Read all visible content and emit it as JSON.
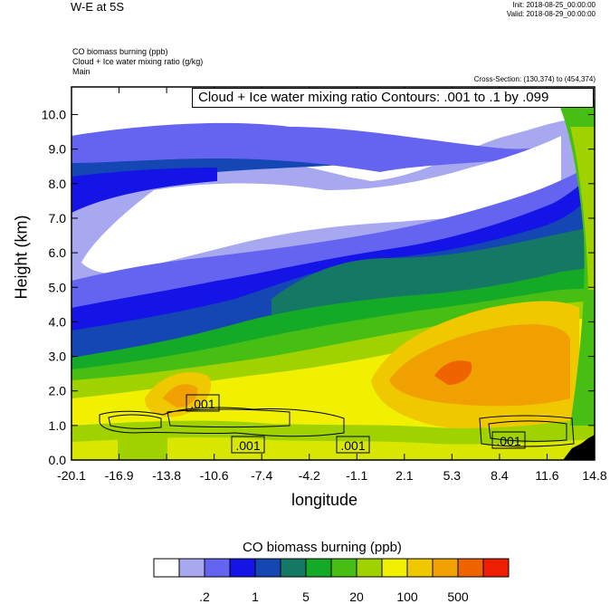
{
  "header": {
    "title": "W-E at 5S",
    "init": "Init: 2018-08-25_00:00:00",
    "valid": "Valid: 2018-08-29_00:00:00",
    "field1": "CO biomass burning   (ppb)",
    "field2": "Cloud + Ice water mixing ratio   (g/kg)",
    "field3": "Main",
    "cross_section": "Cross-Section: (130,374) to (454,374)"
  },
  "chart_data": {
    "type": "heatmap",
    "contour_legend": "Cloud + Ice water mixing ratio Contours: .001 to .1 by .099",
    "contour_labels": [
      ".001",
      ".001",
      ".001",
      ".001"
    ],
    "xlabel": "longitude",
    "ylabel": "Height (km)",
    "x_ticks": [
      "-20.1",
      "-16.9",
      "-13.8",
      "-10.6",
      "-7.4",
      "-4.2",
      "-1.1",
      "2.1",
      "5.3",
      "8.4",
      "11.6",
      "14.8"
    ],
    "y_ticks": [
      "0.0",
      "1.0",
      "2.0",
      "3.0",
      "4.0",
      "5.0",
      "6.0",
      "7.0",
      "8.0",
      "9.0",
      "10.0"
    ],
    "xlim": [
      -20.1,
      14.8
    ],
    "ylim": [
      0,
      10.8
    ],
    "colorbar": {
      "title": "CO biomass burning  (ppb)",
      "colors": [
        "#ffffff",
        "#a8a8f0",
        "#6464f0",
        "#1414e6",
        "#1446b4",
        "#147864",
        "#14aa28",
        "#46be14",
        "#a0d200",
        "#f0f000",
        "#f0c800",
        "#f0a000",
        "#f06400",
        "#f01e00"
      ],
      "labels": [
        ".2",
        "1",
        "5",
        "20",
        "100",
        "500"
      ],
      "label_after_box": [
        2,
        4,
        6,
        8,
        10,
        12
      ]
    }
  }
}
